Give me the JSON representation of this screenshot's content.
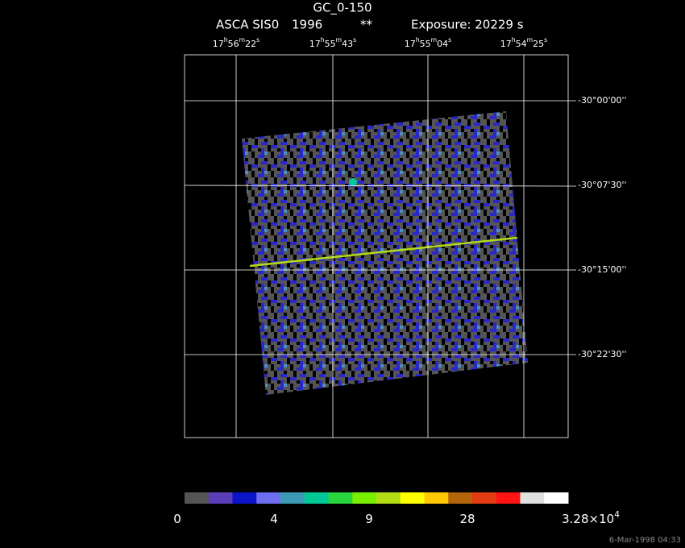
{
  "header": {
    "title": "GC_0-150",
    "subtitle": [
      "ASCA SIS0",
      "1996",
      "**",
      "Exposure: 20229 s"
    ]
  },
  "ra_labels": [
    [
      "17",
      "h",
      "56",
      "m",
      "22",
      "s"
    ],
    [
      "17",
      "h",
      "55",
      "m",
      "43",
      "s"
    ],
    [
      "17",
      "h",
      "55",
      "m",
      "04",
      "s"
    ],
    [
      "17",
      "h",
      "54",
      "m",
      "25",
      "s"
    ]
  ],
  "dec_labels": [
    "-30°00'00''",
    "-30°07'30''",
    "-30°15'00''",
    "-30°22'30''"
  ],
  "colorbar": {
    "colors": [
      "#555555",
      "#5a3db8",
      "#0a14c8",
      "#6e6ef0",
      "#3c9ab4",
      "#00c896",
      "#2ad43c",
      "#78f000",
      "#b4dc14",
      "#ffff00",
      "#ffc800",
      "#b4640a",
      "#e63c14",
      "#ff1414",
      "#e0e0e0",
      "#ffffff"
    ],
    "labels": [
      [
        "0"
      ],
      [
        "4"
      ],
      [
        "9"
      ],
      [
        "28"
      ],
      [
        "3.28×10",
        "4"
      ]
    ]
  },
  "timestamp": "6-Mar-1998 04:33"
}
